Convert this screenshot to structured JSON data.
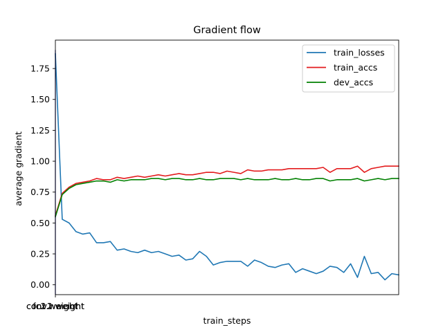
{
  "chart_data": {
    "type": "line",
    "title": "Gradient flow",
    "xlabel": "train_steps",
    "ylabel": "average gradient",
    "ylim": [
      -0.08,
      1.98
    ],
    "yticks": [
      0.0,
      0.25,
      0.5,
      0.75,
      1.0,
      1.25,
      1.5,
      1.75
    ],
    "ytick_labels": [
      "0.00",
      "0.25",
      "0.50",
      "0.75",
      "1.00",
      "1.25",
      "1.50",
      "1.75"
    ],
    "xticks": [
      {
        "label": "conv1.weight"
      },
      {
        "label": "fc1.weight"
      },
      {
        "label": "fc2.weight"
      },
      {
        "label": "conv2.weight"
      }
    ],
    "legend_position": "top-right",
    "grid": false,
    "x": [
      0,
      1,
      2,
      3,
      4,
      5,
      6,
      7,
      8,
      9,
      10,
      11,
      12,
      13,
      14,
      15,
      16,
      17,
      18,
      19,
      20,
      21,
      22,
      23,
      24,
      25,
      26,
      27,
      28,
      29,
      30,
      31,
      32,
      33,
      34,
      35,
      36,
      37,
      38,
      39,
      40,
      41,
      42,
      43,
      44,
      45,
      46,
      47,
      48,
      49,
      50
    ],
    "series": [
      {
        "name": "train_losses",
        "color": "#1f77b4",
        "values": [
          1.87,
          0.53,
          0.5,
          0.43,
          0.41,
          0.42,
          0.34,
          0.34,
          0.35,
          0.28,
          0.29,
          0.27,
          0.26,
          0.28,
          0.26,
          0.27,
          0.25,
          0.23,
          0.24,
          0.2,
          0.21,
          0.27,
          0.23,
          0.16,
          0.18,
          0.19,
          0.19,
          0.19,
          0.15,
          0.2,
          0.18,
          0.15,
          0.14,
          0.16,
          0.17,
          0.1,
          0.13,
          0.11,
          0.09,
          0.11,
          0.15,
          0.14,
          0.1,
          0.17,
          0.06,
          0.23,
          0.09,
          0.1,
          0.04,
          0.09,
          0.08
        ]
      },
      {
        "name": "train_accs",
        "color": "#e31a1c",
        "values": [
          0.56,
          0.74,
          0.79,
          0.82,
          0.83,
          0.84,
          0.86,
          0.85,
          0.85,
          0.87,
          0.86,
          0.87,
          0.88,
          0.87,
          0.88,
          0.89,
          0.88,
          0.89,
          0.9,
          0.89,
          0.89,
          0.9,
          0.91,
          0.91,
          0.9,
          0.92,
          0.91,
          0.9,
          0.93,
          0.92,
          0.92,
          0.93,
          0.93,
          0.93,
          0.94,
          0.94,
          0.94,
          0.94,
          0.94,
          0.95,
          0.91,
          0.94,
          0.94,
          0.94,
          0.96,
          0.91,
          0.94,
          0.95,
          0.96,
          0.96,
          0.96
        ]
      },
      {
        "name": "dev_accs",
        "color": "#008000",
        "values": [
          0.55,
          0.73,
          0.78,
          0.81,
          0.82,
          0.83,
          0.84,
          0.84,
          0.83,
          0.85,
          0.84,
          0.85,
          0.85,
          0.85,
          0.86,
          0.86,
          0.85,
          0.86,
          0.86,
          0.85,
          0.85,
          0.86,
          0.85,
          0.85,
          0.86,
          0.86,
          0.86,
          0.85,
          0.86,
          0.85,
          0.85,
          0.85,
          0.86,
          0.85,
          0.85,
          0.86,
          0.85,
          0.85,
          0.86,
          0.86,
          0.84,
          0.85,
          0.85,
          0.85,
          0.86,
          0.84,
          0.85,
          0.86,
          0.85,
          0.86,
          0.86
        ]
      }
    ]
  }
}
